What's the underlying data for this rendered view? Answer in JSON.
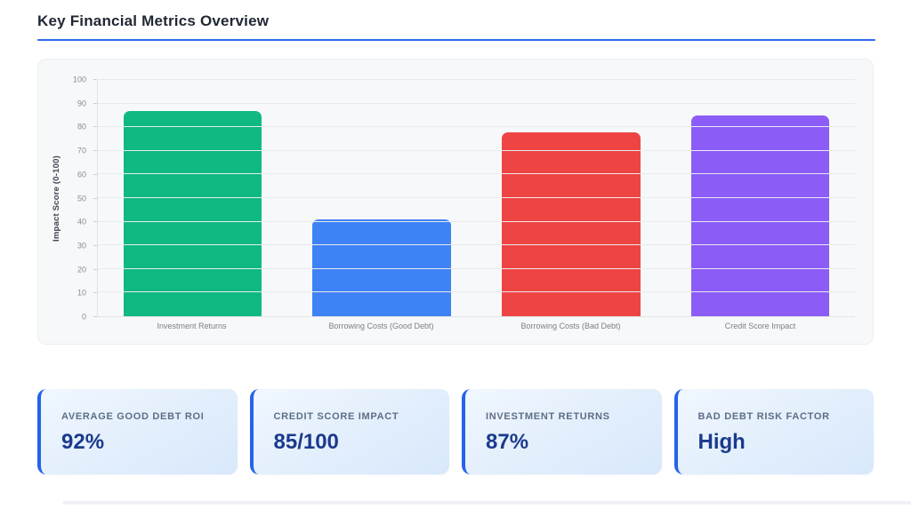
{
  "header": {
    "title": "Key Financial Metrics Overview"
  },
  "colors": {
    "accent_blue": "#2e6bee",
    "card_border": "#2563eb",
    "card_value_navy": "#1b3a8c",
    "panel_bg": "#f7f8f9",
    "bar_green": "#10b981",
    "bar_blue": "#3e83f5",
    "bar_red": "#ef4444",
    "bar_purple": "#8b5cf6"
  },
  "chart_data": {
    "type": "bar",
    "title": "",
    "categories": [
      "Investment Returns",
      "Borrowing Costs (Good Debt)",
      "Borrowing Costs (Bad Debt)",
      "Credit Score Impact"
    ],
    "values": [
      87,
      41,
      78,
      85
    ],
    "bar_colors": [
      "#10b981",
      "#3e83f5",
      "#ef4444",
      "#8b5cf6"
    ],
    "xlabel": "",
    "ylabel": "Impact Score (0-100)",
    "ylim": [
      0,
      100
    ],
    "ytick_step": 10,
    "grid": true,
    "legend_position": "none"
  },
  "stat_cards": [
    {
      "label": "AVERAGE GOOD DEBT ROI",
      "value": "92%"
    },
    {
      "label": "CREDIT SCORE IMPACT",
      "value": "85/100"
    },
    {
      "label": "INVESTMENT RETURNS",
      "value": "87%"
    },
    {
      "label": "BAD DEBT RISK FACTOR",
      "value": "High"
    }
  ]
}
